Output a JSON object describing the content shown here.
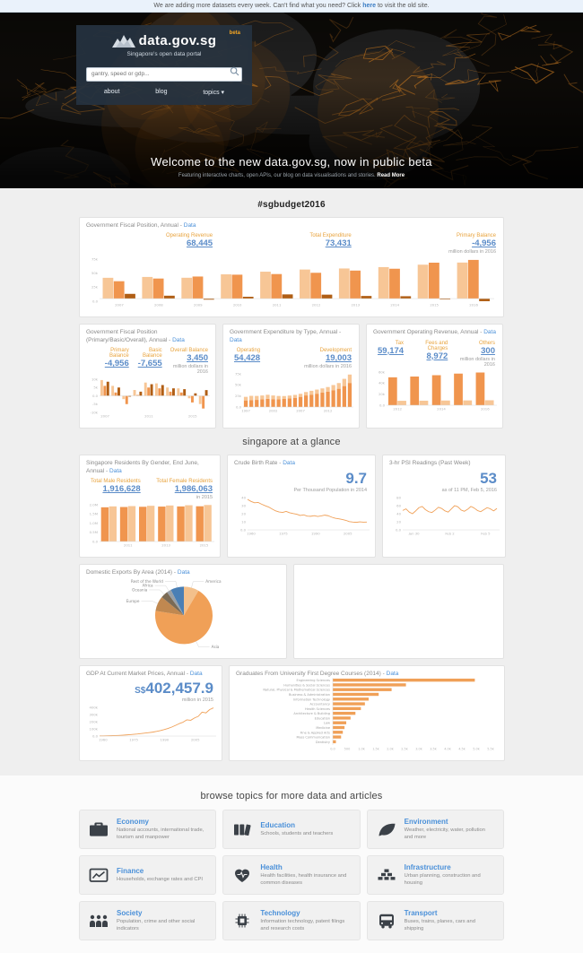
{
  "notice": {
    "prefix": "We are adding more datasets every week. Can't find what you need? Click",
    "link": "here",
    "suffix": "to visit the old site."
  },
  "header": {
    "logo": "data.gov.sg",
    "beta_tag": "beta",
    "tagline": "Singapore's open data portal",
    "search_placeholder": "gantry, speed or gdp...",
    "nav": {
      "about": "about",
      "blog": "blog",
      "topics": "topics ▾"
    }
  },
  "hero": {
    "title": "Welcome to the new data.gov.sg, now in public beta",
    "subtitle": "Featuring interactive charts, open APIs, our blog on data visualisations and stories.",
    "read_more": "Read More"
  },
  "section_titles": {
    "budget": "#sgbudget2016",
    "glance": "singapore at a glance",
    "topics": "browse topics for more data and articles"
  },
  "cards": {
    "fiscal_main": {
      "title": "Government Fiscal Position, Annual",
      "sep": " - ",
      "link": "Data",
      "stats": [
        {
          "label": "Operating Revenue",
          "value": "68,445"
        },
        {
          "label": "Total Expenditure",
          "value": "73,431"
        },
        {
          "label": "Primary Balance",
          "value": "-4,956"
        }
      ],
      "note": "million dollars in 2016"
    },
    "fiscal_detail": {
      "title": "Government Fiscal Position (Primary/Basic/Overall), Annual",
      "sep": " - ",
      "link": "Data",
      "stats": [
        {
          "label": "Primary Balance",
          "value": "-4,956"
        },
        {
          "label": "Basic Balance",
          "value": "-7,655"
        },
        {
          "label": "Overall Balance",
          "value": "3,450"
        }
      ],
      "note": "million dollars in 2016"
    },
    "expenditure": {
      "title": "Government Expenditure by Type, Annual",
      "sep": " - ",
      "link": "Data",
      "stats": [
        {
          "label": "Operating",
          "value": "54,428"
        },
        {
          "label": "Development",
          "value": "19,003"
        }
      ],
      "note": "million dollars in 2016"
    },
    "op_revenue": {
      "title": "Government Operating Revenue, Annual",
      "sep": " - ",
      "link": "Data",
      "stats": [
        {
          "label": "Tax",
          "value": "59,174"
        },
        {
          "label": "Fees and Charges",
          "value": "8,972"
        },
        {
          "label": "Others",
          "value": "300"
        }
      ],
      "note": "million dollars in 2016"
    },
    "residents": {
      "title": "Singapore Residents By Gender, End June, Annual",
      "sep": " - ",
      "link": "Data",
      "stats": [
        {
          "label": "Total Male Residents",
          "value": "1,916,628"
        },
        {
          "label": "Total Female Residents",
          "value": "1,986,063"
        }
      ],
      "note": "in 2015"
    },
    "birth_rate": {
      "title": "Crude Birth Rate",
      "sep": " - ",
      "link": "Data",
      "big_value": "9.7",
      "note": "Per Thousand Population in 2014"
    },
    "psi": {
      "title": "3-hr PSI Readings (Past Week)",
      "big_value": "53",
      "note": "as of 11 PM, Feb 5, 2016"
    },
    "exports": {
      "title": "Domestic Exports By Area (2014)",
      "sep": " - ",
      "link": "Data"
    },
    "gdp": {
      "title": "GDP At Current Market Prices, Annual",
      "sep": " - ",
      "link": "Data",
      "currency": "S$",
      "big_value": "402,457.9",
      "note": "million in 2015"
    },
    "graduates": {
      "title": "Graduates From University First Degree Courses (2014)",
      "sep": " - ",
      "link": "Data"
    }
  },
  "charts": {
    "fiscal_main": {
      "type": "bar-group",
      "ymax": 75000,
      "ymin": -5000,
      "categories": [
        "2007",
        "2008",
        "2009",
        "2010",
        "2011",
        "2012",
        "2013",
        "2014",
        "2015",
        "2016"
      ],
      "xticks": "all",
      "yticks": [
        "75k",
        "50k",
        "25k",
        "0.0"
      ],
      "series": [
        {
          "name": "Operating Revenue",
          "color": "#f7c696",
          "values": [
            39500,
            41100,
            39600,
            46100,
            51100,
            55200,
            57200,
            59800,
            64400,
            68445
          ]
        },
        {
          "name": "Total Expenditure",
          "color": "#f0954e",
          "values": [
            33000,
            38100,
            41900,
            45400,
            46600,
            49000,
            53200,
            56700,
            68200,
            73431
          ]
        },
        {
          "name": "Primary Balance",
          "color": "#b05e14",
          "values": [
            9000,
            5500,
            -2000,
            3500,
            8000,
            7500,
            5000,
            4500,
            -1500,
            -4956
          ]
        }
      ]
    },
    "fiscal_detail": {
      "type": "bar-group",
      "ymax": 10000,
      "ymin": -10000,
      "categories": [
        "2007",
        "2008",
        "2009",
        "2010",
        "2011",
        "2012",
        "2013",
        "2014",
        "2015",
        "2016"
      ],
      "xticks": [
        "2007",
        "2011",
        "2015"
      ],
      "yticks": [
        "10k",
        "5k",
        "0.0",
        "-5k",
        "-10k"
      ],
      "series": [
        {
          "name": "Primary Balance",
          "color": "#f7c696",
          "values": [
            9500,
            6000,
            -2000,
            3500,
            8000,
            7500,
            5000,
            4500,
            -1500,
            -4956
          ]
        },
        {
          "name": "Basic Balance",
          "color": "#f0954e",
          "values": [
            6000,
            2000,
            -5000,
            500,
            5000,
            4500,
            2500,
            2000,
            -4000,
            -7655
          ]
        },
        {
          "name": "Overall Balance",
          "color": "#b05e14",
          "values": [
            8500,
            5000,
            -500,
            2500,
            7000,
            6500,
            4500,
            4000,
            1500,
            3450
          ]
        }
      ]
    },
    "expenditure": {
      "type": "bar-stack",
      "ymax": 75000,
      "ymin": 0,
      "categories": [
        "1997",
        "1998",
        "1999",
        "2000",
        "2001",
        "2002",
        "2003",
        "2004",
        "2005",
        "2006",
        "2007",
        "2008",
        "2009",
        "2010",
        "2011",
        "2012",
        "2013",
        "2014",
        "2015",
        "2016"
      ],
      "xticks": [
        "1997",
        "2002",
        "2007",
        "2012"
      ],
      "yticks": [
        "75k",
        "50k",
        "25k",
        "0.0"
      ],
      "series": [
        {
          "name": "Operating",
          "color": "#f0954e",
          "values": [
            14900,
            15800,
            16100,
            17400,
            18600,
            17800,
            17600,
            18300,
            19500,
            20800,
            23000,
            26200,
            28000,
            30100,
            32400,
            34900,
            38100,
            41300,
            47400,
            54428
          ]
        },
        {
          "name": "Development",
          "color": "#f7c696",
          "values": [
            8100,
            9500,
            9000,
            8700,
            9100,
            8300,
            7400,
            6500,
            6400,
            6600,
            6900,
            7700,
            8700,
            9300,
            9700,
            10300,
            11600,
            12900,
            16300,
            19003
          ]
        }
      ]
    },
    "op_revenue": {
      "type": "bar-group",
      "ymax": 60000,
      "ymin": 0,
      "categories": [
        "2012",
        "2013",
        "2014",
        "2015",
        "2016"
      ],
      "xticks": [
        "2012",
        "2014",
        "2016"
      ],
      "yticks": [
        "60k",
        "40k",
        "20k",
        "0.0"
      ],
      "series": [
        {
          "name": "Tax",
          "color": "#f0954e",
          "values": [
            50500,
            51900,
            54300,
            57200,
            59174
          ]
        },
        {
          "name": "Fees and Charges",
          "color": "#f7c696",
          "values": [
            8000,
            8200,
            8500,
            8700,
            8972
          ]
        }
      ]
    },
    "residents": {
      "type": "bar-group",
      "ymax": 2000000,
      "ymin": 0,
      "categories": [
        "2010",
        "2011",
        "2012",
        "2013",
        "2014",
        "2015"
      ],
      "xticks": [
        "2011",
        "2013",
        "2015"
      ],
      "yticks": [
        "2.0M",
        "1.5M",
        "1.0M",
        "0.5M",
        "0.0"
      ],
      "series": [
        {
          "name": "Male",
          "color": "#f0954e",
          "values": [
            1861100,
            1876700,
            1888700,
            1899900,
            1907600,
            1916628
          ]
        },
        {
          "name": "Female",
          "color": "#f7c696",
          "values": [
            1910400,
            1926100,
            1943400,
            1959900,
            1973200,
            1986063
          ]
        }
      ]
    },
    "birth_rate": {
      "type": "line",
      "color": "#f0a057",
      "ymax": 40,
      "ymin": 0,
      "yticks": [
        "40",
        "30",
        "20",
        "10",
        "0.0"
      ],
      "values": [
        37.8,
        35.2,
        33.5,
        34.0,
        31.8,
        29.9,
        28.3,
        25.8,
        23.5,
        22.1,
        21.6,
        22.8,
        21.2,
        20.2,
        19.4,
        17.8,
        18.6,
        17.0,
        16.8,
        17.6,
        16.6,
        17.3,
        18.2,
        17.5,
        15.7,
        14.4,
        13.7,
        12.8,
        11.8,
        10.2,
        9.6,
        9.3,
        9.9,
        9.5,
        9.7
      ],
      "xticks": [
        {
          "l": "1960",
          "f": 0.03
        },
        {
          "l": "1975",
          "f": 0.3
        },
        {
          "l": "1990",
          "f": 0.57
        },
        {
          "l": "2005",
          "f": 0.84
        }
      ]
    },
    "psi": {
      "type": "line",
      "color": "#f0a057",
      "ymax": 80,
      "ymin": 0,
      "yticks": [
        "80",
        "60",
        "40",
        "20",
        "0.0"
      ],
      "values": [
        48,
        52,
        44,
        40,
        47,
        55,
        58,
        50,
        45,
        43,
        49,
        56,
        53,
        47,
        44,
        52,
        60,
        57,
        49,
        46,
        51,
        58,
        54,
        48,
        45,
        50,
        55,
        52,
        47,
        53
      ],
      "xticks": [
        {
          "l": "Jan 30",
          "f": 0.12
        },
        {
          "l": "Feb 2",
          "f": 0.5
        },
        {
          "l": "Feb 5",
          "f": 0.88
        }
      ]
    },
    "exports_pie": {
      "type": "pie",
      "slices": [
        {
          "label": "America",
          "value": 8.5,
          "color": "#f3c08b"
        },
        {
          "label": "Asia",
          "value": 69,
          "color": "#f0a057"
        },
        {
          "label": "Europe",
          "value": 8.5,
          "color": "#c08850"
        },
        {
          "label": "Oceania",
          "value": 4,
          "color": "#7a6a55"
        },
        {
          "label": "Africa",
          "value": 2.5,
          "color": "#9aa0a6"
        },
        {
          "label": "Rest of the World",
          "value": 7.5,
          "color": "#4a7fb5"
        }
      ]
    },
    "gdp": {
      "type": "line",
      "color": "#f0a057",
      "ymax": 410000,
      "ymin": 0,
      "yticks": [
        "400k",
        "300k",
        "200k",
        "100k",
        "0.0"
      ],
      "values": [
        2150,
        2850,
        3700,
        4950,
        6600,
        9200,
        12500,
        16000,
        20100,
        24500,
        29500,
        36500,
        42000,
        48500,
        56000,
        66000,
        78000,
        92000,
        108000,
        128000,
        152000,
        178000,
        198000,
        232000,
        225000,
        258000,
        282000,
        342000,
        330000,
        378000,
        402458
      ],
      "xticks": [
        {
          "l": "1960",
          "f": 0.03
        },
        {
          "l": "1975",
          "f": 0.3
        },
        {
          "l": "1990",
          "f": 0.57
        },
        {
          "l": "2005",
          "f": 0.84
        }
      ]
    },
    "graduates": {
      "type": "hbar",
      "xmax": 5500,
      "color": "#f0a057",
      "categories": [
        "Engineering Sciences",
        "Humanities & Social Sciences",
        "Natural, Physical & Mathematical Sciences",
        "Business & Administration",
        "Information Technology",
        "Accountancy",
        "Health Sciences",
        "Architecture & Building",
        "Education",
        "Law",
        "Medicine",
        "Fine & Applied Arts",
        "Mass Communication",
        "Dentistry"
      ],
      "values": [
        4950,
        2550,
        2050,
        1600,
        1250,
        1120,
        980,
        790,
        620,
        470,
        410,
        350,
        290,
        110
      ],
      "xticks": [
        "0.0",
        "500",
        "1.0k",
        "1.5k",
        "2.0k",
        "2.5k",
        "3.0k",
        "3.5k",
        "4.0k",
        "4.5k",
        "5.0k",
        "5.5k"
      ]
    }
  },
  "topics": [
    {
      "title": "Economy",
      "desc": "National accounts, international trade, tourism and manpower"
    },
    {
      "title": "Education",
      "desc": "Schools, students and teachers"
    },
    {
      "title": "Environment",
      "desc": "Weather, electricity, water, pollution and more"
    },
    {
      "title": "Finance",
      "desc": "Households, exchange rates and CPI"
    },
    {
      "title": "Health",
      "desc": "Health facilities, health insurance and common diseases"
    },
    {
      "title": "Infrastructure",
      "desc": "Urban planning, construction and housing"
    },
    {
      "title": "Society",
      "desc": "Population, crime and other social indicators"
    },
    {
      "title": "Technology",
      "desc": "Information technology, patent filings and research costs"
    },
    {
      "title": "Transport",
      "desc": "Buses, trains, planes, cars and shipping"
    }
  ]
}
